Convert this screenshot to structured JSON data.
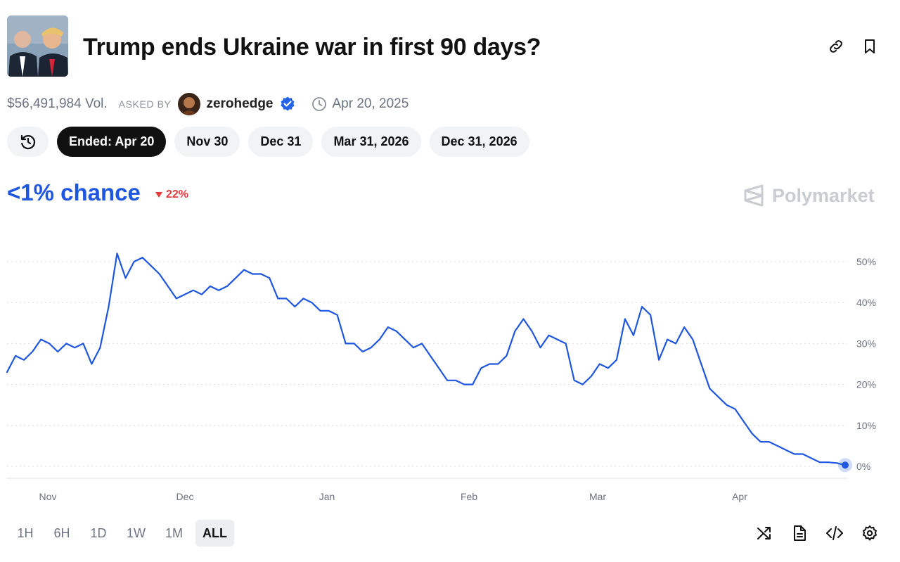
{
  "market": {
    "title": "Trump ends Ukraine war in first 90 days?",
    "volume": "$56,491,984 Vol.",
    "asked_by_label": "ASKED BY",
    "author": "zerohedge",
    "end_date": "Apr 20, 2025"
  },
  "header_icons": [
    "link-icon",
    "bookmark-icon"
  ],
  "date_tabs": [
    {
      "label": "Ended: Apr 20",
      "active": true
    },
    {
      "label": "Nov 30",
      "active": false
    },
    {
      "label": "Dec 31",
      "active": false
    },
    {
      "label": "Mar 31, 2026",
      "active": false
    },
    {
      "label": "Dec 31, 2026",
      "active": false
    }
  ],
  "probability": {
    "chance_text": "<1% chance",
    "change_text": "22%",
    "change_direction": "down"
  },
  "brand": {
    "name": "Polymarket"
  },
  "chart_data": {
    "type": "line",
    "title": "",
    "xlabel": "",
    "ylabel": "",
    "ylim": [
      0,
      55
    ],
    "y_ticks": [
      "50%",
      "40%",
      "30%",
      "20%",
      "10%",
      "0%"
    ],
    "x_ticks": [
      "Nov",
      "Dec",
      "Jan",
      "Feb",
      "Mar",
      "Apr"
    ],
    "grid": "horizontal dotted",
    "color": "#1e56e0",
    "series": [
      {
        "name": "",
        "x": [
          "Oct 22",
          "Oct 23",
          "Oct 24",
          "Oct 25",
          "Oct 26",
          "Oct 27",
          "Oct 28",
          "Oct 29",
          "Oct 30",
          "Oct 31",
          "Nov 1",
          "Nov 2",
          "Nov 3",
          "Nov 4",
          "Nov 5",
          "Nov 6",
          "Nov 7",
          "Nov 8",
          "Nov 9",
          "Nov 10",
          "Nov 12",
          "Nov 14",
          "Nov 16",
          "Nov 18",
          "Nov 20",
          "Nov 22",
          "Nov 24",
          "Nov 26",
          "Nov 28",
          "Nov 30",
          "Dec 2",
          "Dec 4",
          "Dec 6",
          "Dec 8",
          "Dec 10",
          "Dec 12",
          "Dec 14",
          "Dec 16",
          "Dec 18",
          "Dec 20",
          "Dec 22",
          "Dec 24",
          "Dec 26",
          "Dec 28",
          "Dec 30",
          "Jan 1",
          "Jan 3",
          "Jan 5",
          "Jan 7",
          "Jan 9",
          "Jan 11",
          "Jan 13",
          "Jan 15",
          "Jan 17",
          "Jan 19",
          "Jan 21",
          "Jan 23",
          "Jan 25",
          "Jan 27",
          "Jan 29",
          "Jan 31",
          "Feb 2",
          "Feb 4",
          "Feb 6",
          "Feb 8",
          "Feb 10",
          "Feb 12",
          "Feb 14",
          "Feb 16",
          "Feb 18",
          "Feb 20",
          "Feb 22",
          "Feb 24",
          "Feb 26",
          "Feb 28",
          "Mar 2",
          "Mar 4",
          "Mar 6",
          "Mar 8",
          "Mar 10",
          "Mar 12",
          "Mar 14",
          "Mar 16",
          "Mar 18",
          "Mar 20",
          "Mar 22",
          "Mar 24",
          "Mar 26",
          "Mar 28",
          "Mar 30",
          "Apr 1",
          "Apr 3",
          "Apr 5",
          "Apr 7",
          "Apr 9",
          "Apr 11",
          "Apr 13",
          "Apr 15",
          "Apr 17",
          "Apr 20"
        ],
        "values": [
          23,
          27,
          26,
          28,
          31,
          30,
          28,
          30,
          29,
          30,
          25,
          29,
          39,
          52,
          46,
          50,
          51,
          49,
          47,
          44,
          41,
          42,
          43,
          42,
          44,
          43,
          44,
          46,
          48,
          47,
          47,
          46,
          41,
          41,
          39,
          41,
          40,
          38,
          38,
          37,
          30,
          30,
          28,
          29,
          31,
          34,
          33,
          31,
          29,
          30,
          27,
          24,
          21,
          21,
          20,
          20,
          24,
          25,
          25,
          27,
          33,
          36,
          33,
          29,
          32,
          31,
          30,
          21,
          20,
          22,
          25,
          24,
          26,
          36,
          32,
          39,
          37,
          26,
          31,
          30,
          34,
          31,
          25,
          19,
          17,
          15,
          14,
          11,
          8,
          6,
          6,
          5,
          4,
          3,
          3,
          2,
          1,
          1,
          0.8,
          0.3
        ]
      }
    ]
  },
  "time_ranges": [
    {
      "label": "1H",
      "active": false
    },
    {
      "label": "6H",
      "active": false
    },
    {
      "label": "1D",
      "active": false
    },
    {
      "label": "1W",
      "active": false
    },
    {
      "label": "1M",
      "active": false
    },
    {
      "label": "ALL",
      "active": true
    }
  ],
  "toolbar_icons": [
    "shuffle-icon",
    "document-icon",
    "code-icon",
    "settings-icon"
  ]
}
